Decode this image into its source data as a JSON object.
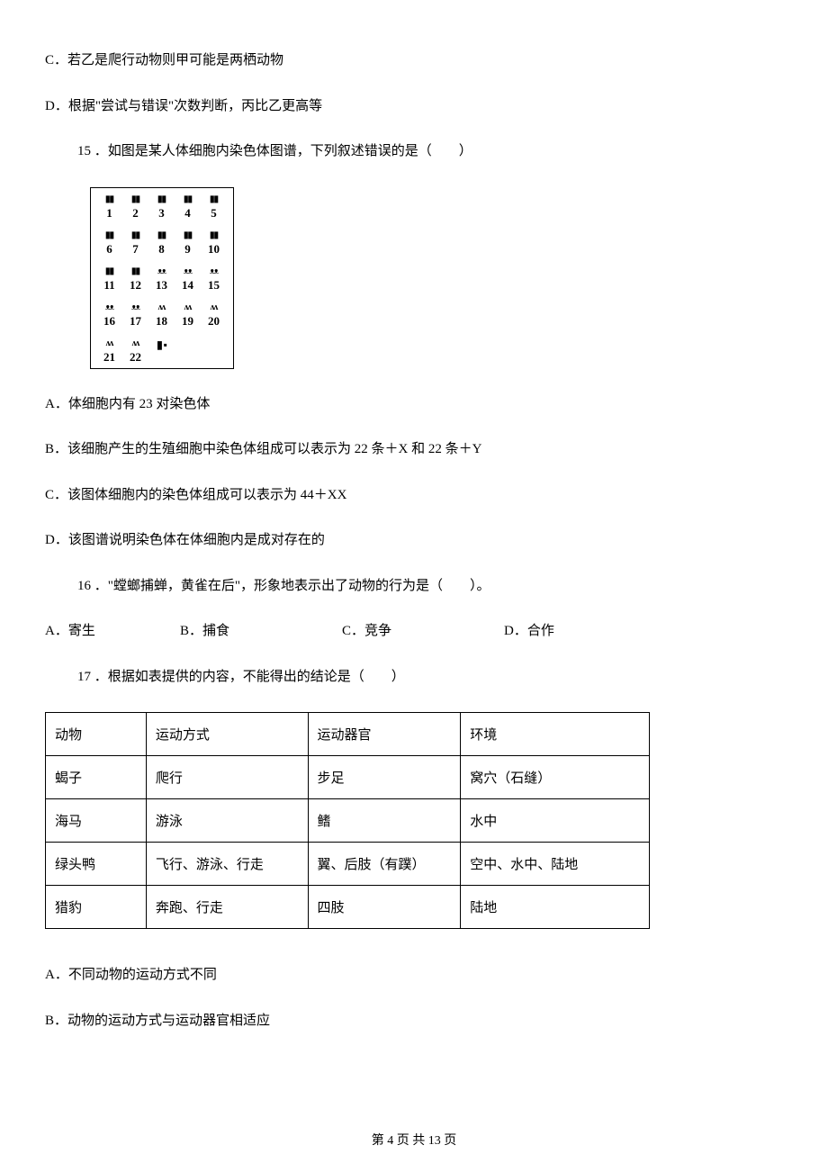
{
  "q14": {
    "optC": "C．若乙是爬行动物则甲可能是两栖动物",
    "optD": "D．根据\"尝试与错误\"次数判断，丙比乙更高等"
  },
  "q15": {
    "stem": "15 ．如图是某人体细胞内染色体图谱，下列叙述错误的是（　　）",
    "karyotype": {
      "rows": [
        [
          "1",
          "2",
          "3",
          "4",
          "5"
        ],
        [
          "6",
          "7",
          "8",
          "9",
          "10"
        ],
        [
          "11",
          "12",
          "13",
          "14",
          "15"
        ],
        [
          "16",
          "17",
          "18",
          "19",
          "20"
        ],
        [
          "21",
          "22"
        ]
      ],
      "sex_glyph": "▮ ▪"
    },
    "optA": "A．体细胞内有 23 对染色体",
    "optB": "B．该细胞产生的生殖细胞中染色体组成可以表示为 22 条＋X 和 22 条＋Y",
    "optC": "C．该图体细胞内的染色体组成可以表示为 44＋XX",
    "optD": "D．该图谱说明染色体在体细胞内是成对存在的"
  },
  "q16": {
    "stem": "16 ．\"螳螂捕蝉，黄雀在后\"，形象地表示出了动物的行为是（　　）。",
    "optA": "A．寄生",
    "optB": "B．捕食",
    "optC": "C．竞争",
    "optD": "D．合作"
  },
  "q17": {
    "stem": "17 ．根据如表提供的内容，不能得出的结论是（　　）",
    "table": {
      "col_widths": [
        "112px",
        "180px",
        "170px",
        "210px"
      ],
      "header": [
        "动物",
        "运动方式",
        "运动器官",
        "环境"
      ],
      "rows": [
        [
          "蝎子",
          "爬行",
          "步足",
          "窝穴（石缝）"
        ],
        [
          "海马",
          "游泳",
          "鳍",
          "水中"
        ],
        [
          "绿头鸭",
          "飞行、游泳、行走",
          "翼、后肢（有蹼）",
          "空中、水中、陆地"
        ],
        [
          "猎豹",
          "奔跑、行走",
          "四肢",
          "陆地"
        ]
      ]
    },
    "optA": "A．不同动物的运动方式不同",
    "optB": "B．动物的运动方式与运动器官相适应"
  },
  "footer": "第 4 页 共 13 页"
}
